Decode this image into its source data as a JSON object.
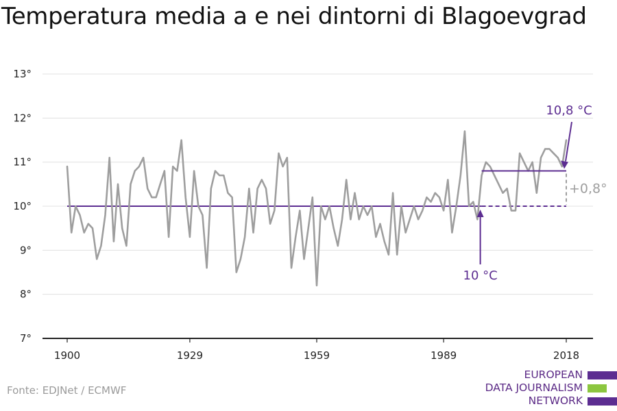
{
  "title": "Temperatura media a e nei dintorni di Blagoevgrad",
  "source": "Fonte: EDJNet / ECMWF",
  "logo": {
    "line1": "EUROPEAN",
    "line2": "DATA JOURNALISM",
    "line3": "NETWORK"
  },
  "colors": {
    "series": "#9e9e9e",
    "accent": "#5c2d91",
    "logo_green": "#8cc63f",
    "grid": "#e0e0e0",
    "axis": "#222222"
  },
  "chart_data": {
    "type": "line",
    "title": "Temperatura media a e nei dintorni di Blagoevgrad",
    "xlabel": "",
    "ylabel": "",
    "xlim": [
      1900,
      2018
    ],
    "ylim": [
      7,
      13
    ],
    "x_ticks": [
      1900,
      1929,
      1959,
      1989,
      2018
    ],
    "y_ticks": [
      7,
      8,
      9,
      10,
      11,
      12,
      13
    ],
    "y_tick_labels": [
      "7°",
      "8°",
      "9°",
      "10°",
      "11°",
      "12°",
      "13°"
    ],
    "grid": true,
    "series": [
      {
        "x": [
          1900,
          1901,
          1902,
          1903,
          1904,
          1905,
          1906,
          1907,
          1908,
          1909,
          1910,
          1911,
          1912,
          1913,
          1914,
          1915,
          1916,
          1917,
          1918,
          1919,
          1920,
          1921,
          1922,
          1923,
          1924,
          1925,
          1926,
          1927,
          1928,
          1929,
          1930,
          1931,
          1932,
          1933,
          1934,
          1935,
          1936,
          1937,
          1938,
          1939,
          1940,
          1941,
          1942,
          1943,
          1944,
          1945,
          1946,
          1947,
          1948,
          1949,
          1950,
          1951,
          1952,
          1953,
          1954,
          1955,
          1956,
          1957,
          1958,
          1959,
          1960,
          1961,
          1962,
          1963,
          1964,
          1965,
          1966,
          1967,
          1968,
          1969,
          1970,
          1971,
          1972,
          1973,
          1974,
          1975,
          1976,
          1977,
          1978,
          1979,
          1980,
          1981,
          1982,
          1983,
          1984,
          1985,
          1986,
          1987,
          1988,
          1989,
          1990,
          1991,
          1992,
          1993,
          1994,
          1995,
          1996,
          1997,
          1998,
          1999,
          2000,
          2001,
          2002,
          2003,
          2004,
          2005,
          2006,
          2007,
          2008,
          2009,
          2010,
          2011,
          2012,
          2013,
          2014,
          2015,
          2016,
          2017,
          2018
        ],
        "values": [
          10.9,
          9.4,
          10.0,
          9.8,
          9.4,
          9.6,
          9.5,
          8.8,
          9.1,
          9.8,
          11.1,
          9.2,
          10.5,
          9.5,
          9.1,
          10.5,
          10.8,
          10.9,
          11.1,
          10.4,
          10.2,
          10.2,
          10.5,
          10.8,
          9.3,
          10.9,
          10.8,
          11.5,
          10.2,
          9.3,
          10.8,
          10.0,
          9.8,
          8.6,
          10.4,
          10.8,
          10.7,
          10.7,
          10.3,
          10.2,
          8.5,
          8.8,
          9.3,
          10.4,
          9.4,
          10.4,
          10.6,
          10.4,
          9.6,
          9.9,
          11.2,
          10.9,
          11.1,
          8.6,
          9.3,
          9.9,
          8.8,
          9.5,
          10.2,
          8.2,
          10.0,
          9.7,
          10.0,
          9.5,
          9.1,
          9.7,
          10.6,
          9.7,
          10.3,
          9.7,
          10.0,
          9.8,
          10.0,
          9.3,
          9.6,
          9.2,
          8.9,
          10.3,
          8.9,
          10.0,
          9.4,
          9.7,
          10.0,
          9.7,
          9.9,
          10.2,
          10.1,
          10.3,
          10.2,
          9.9,
          10.6,
          9.4,
          10.0,
          10.7,
          11.7,
          10.0,
          10.1,
          9.7,
          10.7,
          11.0,
          10.9,
          10.7,
          10.5,
          10.3,
          10.4,
          9.9,
          9.9,
          11.2,
          11.0,
          10.8,
          11.0,
          10.3,
          11.1,
          11.3,
          11.3,
          11.2,
          11.1,
          10.9,
          11.5
        ]
      }
    ],
    "baseline": {
      "value": 10,
      "label": "10 °C",
      "x_start": 1900,
      "x_end": 2018
    },
    "recent_mean": {
      "value": 10.8,
      "label": "10,8 °C",
      "x_start": 1998,
      "x_end": 2018
    },
    "difference_label": "+0,8°"
  }
}
